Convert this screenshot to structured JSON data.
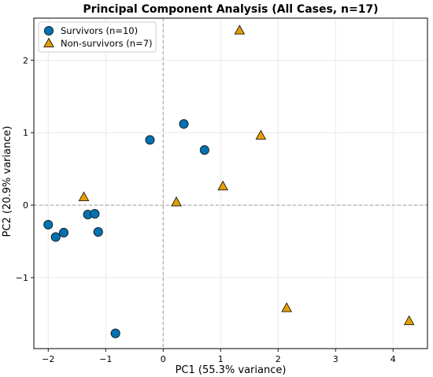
{
  "chart_data": {
    "type": "scatter",
    "title": "Principal Component Analysis (All Cases, n=17)",
    "xlabel": "PC1 (55.3% variance)",
    "ylabel": "PC2 (20.9% variance)",
    "xlim": [
      -2.25,
      4.6
    ],
    "ylim": [
      -1.98,
      2.58
    ],
    "xticks": [
      -2,
      -1,
      0,
      1,
      2,
      3,
      4
    ],
    "yticks": [
      -1,
      0,
      1,
      2
    ],
    "xtick_labels": [
      "−2",
      "−1",
      "0",
      "1",
      "2",
      "3",
      "4"
    ],
    "ytick_labels": [
      "−1",
      "0",
      "1",
      "2"
    ],
    "grid": true,
    "reference_lines": {
      "x": 0,
      "y": 0
    },
    "legend_position": "top-left",
    "series": [
      {
        "name": "Survivors (n=10)",
        "marker": "circle",
        "color": "#0072B2",
        "points": [
          {
            "x": -2.0,
            "y": -0.27
          },
          {
            "x": -1.87,
            "y": -0.44
          },
          {
            "x": -1.73,
            "y": -0.38
          },
          {
            "x": -1.31,
            "y": -0.13
          },
          {
            "x": -1.19,
            "y": -0.12
          },
          {
            "x": -1.13,
            "y": -0.37
          },
          {
            "x": -0.83,
            "y": -1.77
          },
          {
            "x": -0.23,
            "y": 0.9
          },
          {
            "x": 0.36,
            "y": 1.12
          },
          {
            "x": 0.72,
            "y": 0.76
          }
        ]
      },
      {
        "name": "Non-survivors (n=7)",
        "marker": "triangle",
        "color": "#E69F00",
        "points": [
          {
            "x": -1.38,
            "y": 0.11
          },
          {
            "x": 0.23,
            "y": 0.04
          },
          {
            "x": 1.04,
            "y": 0.26
          },
          {
            "x": 1.33,
            "y": 2.41
          },
          {
            "x": 1.7,
            "y": 0.96
          },
          {
            "x": 2.15,
            "y": -1.42
          },
          {
            "x": 4.28,
            "y": -1.6
          }
        ]
      }
    ]
  }
}
